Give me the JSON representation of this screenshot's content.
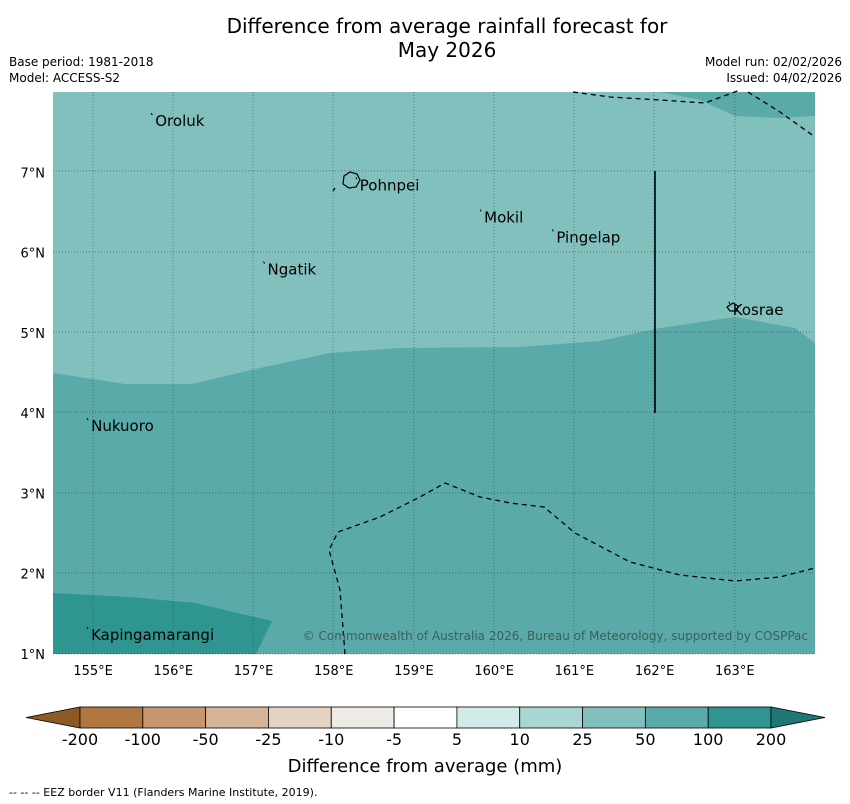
{
  "title": {
    "line1": "Difference from average rainfall forecast for",
    "line2": "May 2026"
  },
  "meta": {
    "base_period": "Base period: 1981-2018",
    "model": "Model: ACCESS-S2",
    "model_run": "Model run: 02/02/2026",
    "issued": "Issued: 04/02/2026"
  },
  "map": {
    "lon_range": [
      154.5,
      164.0
    ],
    "lat_range": [
      1.0,
      8.0
    ],
    "lon_ticks": [
      "155°E",
      "156°E",
      "157°E",
      "158°E",
      "159°E",
      "160°E",
      "161°E",
      "162°E",
      "163°E"
    ],
    "lat_ticks": [
      "1°N",
      "2°N",
      "3°N",
      "4°N",
      "5°N",
      "6°N",
      "7°N"
    ],
    "places": [
      {
        "name": "Oroluk",
        "lon": 155.75,
        "lat": 7.65
      },
      {
        "name": "Pohnpei",
        "lon": 158.3,
        "lat": 6.85
      },
      {
        "name": "Mokil",
        "lon": 159.85,
        "lat": 6.45
      },
      {
        "name": "Pingelap",
        "lon": 160.75,
        "lat": 6.2
      },
      {
        "name": "Ngatik",
        "lon": 157.15,
        "lat": 5.8
      },
      {
        "name": "Kosrae",
        "lon": 162.95,
        "lat": 5.3
      },
      {
        "name": "Nukuoro",
        "lon": 154.95,
        "lat": 3.85
      },
      {
        "name": "Kapingamarangi",
        "lon": 154.95,
        "lat": 1.25
      }
    ],
    "copyright": "© Commonwealth of Australia 2026, Bureau of Meteorology, supported by COSPPac"
  },
  "colorbar": {
    "title": "Difference from average (mm)",
    "labels": [
      "-200",
      "-100",
      "-50",
      "-25",
      "-10",
      "-5",
      "5",
      "10",
      "25",
      "50",
      "100",
      "200"
    ],
    "colors": [
      "#8c5a24",
      "#b07840",
      "#c4976e",
      "#d5b497",
      "#e4d2c2",
      "#eeebe6",
      "#ffffff",
      "#d2ebe9",
      "#a8d6d3",
      "#82c0bd",
      "#5aaaa9",
      "#2f9591",
      "#1f7874"
    ]
  },
  "footnote": "--  --  -- EEZ border V11 (Flanders Marine Institute, 2019)."
}
